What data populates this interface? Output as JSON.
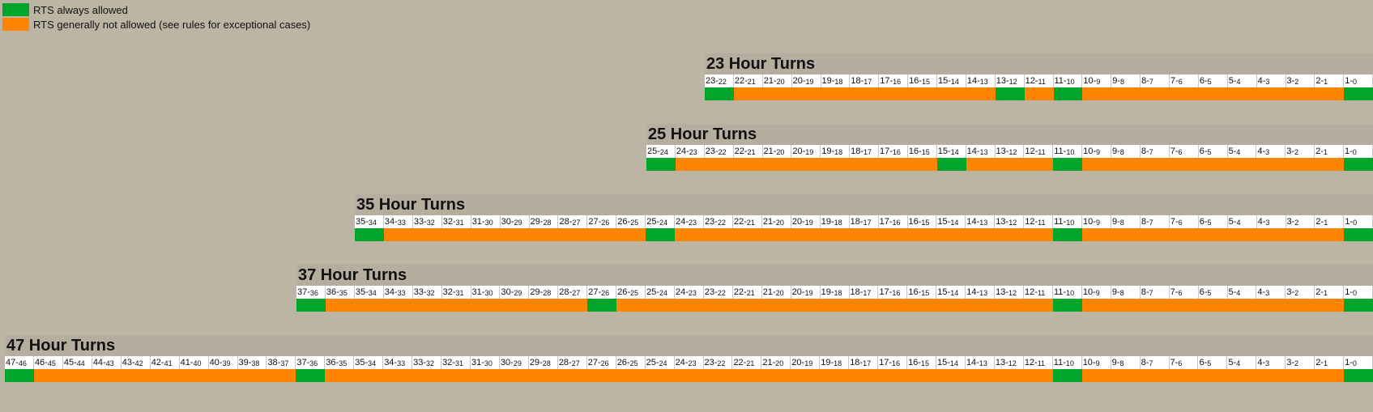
{
  "colors": {
    "green": "#00a62b",
    "orange": "#ff8400"
  },
  "legend": [
    {
      "color": "green",
      "label": "RTS always allowed"
    },
    {
      "color": "orange",
      "label": "RTS generally not allowed (see rules for exceptional cases)"
    }
  ],
  "blocks": [
    {
      "title": "23 Hour Turns",
      "hours": 23,
      "green_from_hours": [
        23,
        13,
        11,
        1
      ]
    },
    {
      "title": "25 Hour Turns",
      "hours": 25,
      "green_from_hours": [
        25,
        15,
        11,
        1
      ]
    },
    {
      "title": "35 Hour Turns",
      "hours": 35,
      "green_from_hours": [
        35,
        25,
        11,
        1
      ]
    },
    {
      "title": "37 Hour Turns",
      "hours": 37,
      "green_from_hours": [
        37,
        27,
        11,
        1
      ]
    },
    {
      "title": "47 Hour Turns",
      "hours": 47,
      "green_from_hours": [
        47,
        37,
        11,
        1
      ]
    }
  ]
}
